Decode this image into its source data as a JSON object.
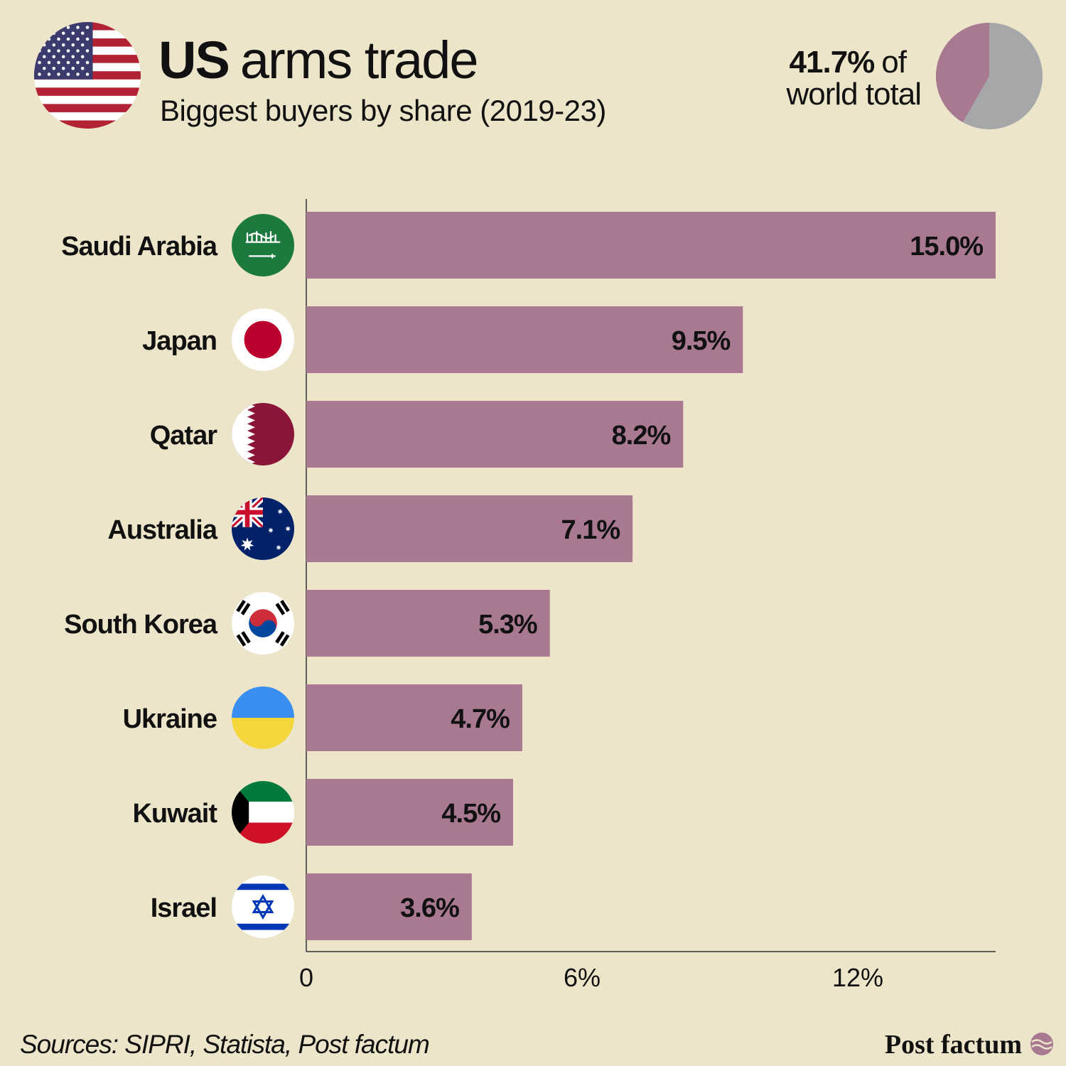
{
  "chart_data": {
    "type": "bar",
    "orientation": "horizontal",
    "title": {
      "emphasis": "US",
      "text": "arms trade"
    },
    "subtitle": "Biggest buyers by share (2019-23)",
    "categories": [
      "Saudi Arabia",
      "Japan",
      "Qatar",
      "Australia",
      "South Korea",
      "Ukraine",
      "Kuwait",
      "Israel"
    ],
    "values": [
      15.0,
      9.5,
      8.2,
      7.1,
      5.3,
      4.7,
      4.5,
      3.6
    ],
    "value_labels": [
      "15.0%",
      "9.5%",
      "8.2%",
      "7.1%",
      "5.3%",
      "4.7%",
      "4.5%",
      "3.6%"
    ],
    "color": "#a87990",
    "xlim": [
      0,
      15
    ],
    "xticks": [
      0,
      {
        "value": 6,
        "label": "6%"
      },
      {
        "value": 12,
        "label": "12%"
      }
    ],
    "grid": false,
    "inset": {
      "type": "pie",
      "values": [
        41.7
      ],
      "value_labels": [
        "41.7%"
      ],
      "caption": [
        "of",
        "world total"
      ],
      "colors": [
        "#a87990",
        "#a6a7a9"
      ]
    },
    "source": "Sources: SIPRI, Statista, Post factum",
    "brand": "Post factum"
  }
}
